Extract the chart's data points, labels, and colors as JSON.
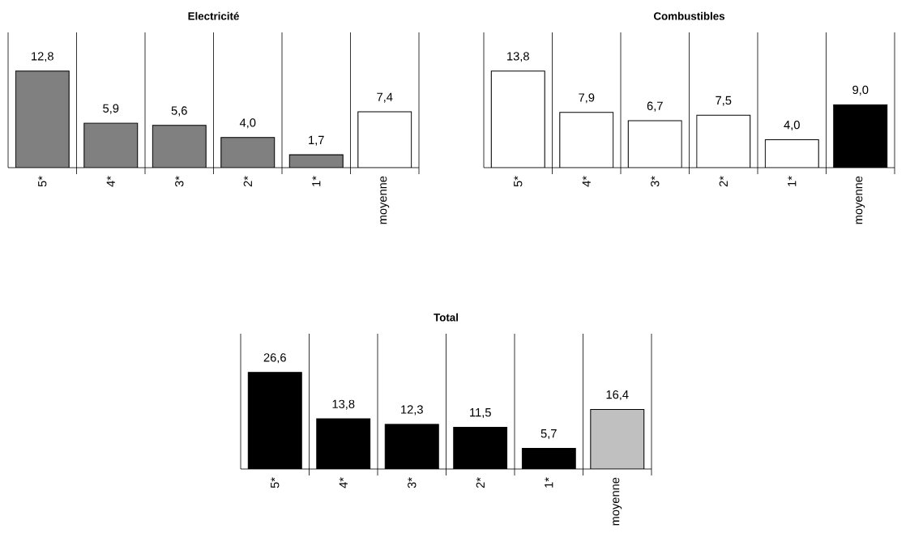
{
  "chart_data": [
    {
      "type": "bar",
      "title": "Electricité",
      "categories": [
        "5*",
        "4*",
        "3*",
        "2*",
        "1*",
        "moyenne"
      ],
      "values": [
        12.8,
        5.9,
        5.6,
        4.0,
        1.7,
        7.4
      ],
      "value_labels": [
        "12,8",
        "5,9",
        "5,6",
        "4,0",
        "1,7",
        "7,4"
      ],
      "colors": [
        "#808080",
        "#808080",
        "#808080",
        "#808080",
        "#808080",
        "#ffffff"
      ],
      "grid": "x"
    },
    {
      "type": "bar",
      "title": "Combustibles",
      "categories": [
        "5*",
        "4*",
        "3*",
        "2*",
        "1*",
        "moyenne"
      ],
      "values": [
        13.8,
        7.9,
        6.7,
        7.5,
        4.0,
        9.0
      ],
      "value_labels": [
        "13,8",
        "7,9",
        "6,7",
        "7,5",
        "4,0",
        "9,0"
      ],
      "colors": [
        "#ffffff",
        "#ffffff",
        "#ffffff",
        "#ffffff",
        "#ffffff",
        "#000000"
      ],
      "grid": "x"
    },
    {
      "type": "bar",
      "title": "Total",
      "categories": [
        "5*",
        "4*",
        "3*",
        "2*",
        "1*",
        "moyenne"
      ],
      "values": [
        26.6,
        13.8,
        12.3,
        11.5,
        5.7,
        16.4
      ],
      "value_labels": [
        "26,6",
        "13,8",
        "12,3",
        "11,5",
        "5,7",
        "16,4"
      ],
      "colors": [
        "#000000",
        "#000000",
        "#000000",
        "#000000",
        "#000000",
        "#c0c0c0"
      ],
      "grid": "x"
    }
  ]
}
